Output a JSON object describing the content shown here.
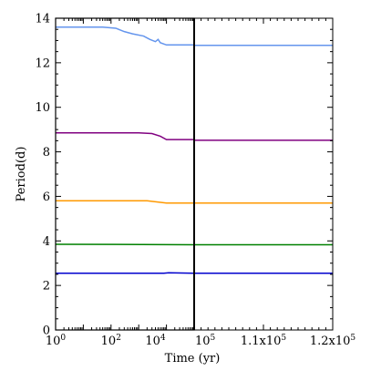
{
  "chart_data": {
    "type": "line",
    "ylabel": "Period(d)",
    "xlabel": "Time (yr)",
    "ylim": [
      0,
      14
    ],
    "yticks": [
      0,
      2,
      4,
      6,
      8,
      10,
      12,
      14
    ],
    "ytick_labels": [
      "0",
      "2",
      "4",
      "6",
      "8",
      "10",
      "12",
      "14"
    ],
    "panels": [
      {
        "name": "left",
        "xscale": "log",
        "xlim": [
          1,
          100000
        ],
        "xticks": [
          1,
          100,
          10000
        ],
        "xtick_labels": [
          "10",
          "10",
          "10"
        ],
        "xtick_exponents": [
          "0",
          "2",
          "4"
        ]
      },
      {
        "name": "right",
        "xscale": "linear",
        "xlim": [
          100000,
          120000
        ],
        "xticks": [
          100000,
          110000,
          120000
        ],
        "xtick_labels": [
          "10",
          "1.1x10",
          "1.2x10"
        ],
        "xtick_exponents": [
          "5",
          "5",
          "5"
        ]
      }
    ],
    "series": [
      {
        "color": "#6495ed",
        "left": [
          [
            1,
            13.6
          ],
          [
            50,
            13.6
          ],
          [
            150,
            13.55
          ],
          [
            300,
            13.4
          ],
          [
            600,
            13.3
          ],
          [
            1500,
            13.2
          ],
          [
            2500,
            13.05
          ],
          [
            4000,
            12.95
          ],
          [
            5000,
            13.05
          ],
          [
            6000,
            12.9
          ],
          [
            10000,
            12.8
          ],
          [
            100000,
            12.8
          ]
        ],
        "right": [
          [
            100000,
            12.78
          ],
          [
            120000,
            12.78
          ]
        ]
      },
      {
        "color": "#800080",
        "left": [
          [
            1,
            8.85
          ],
          [
            1000,
            8.85
          ],
          [
            3000,
            8.82
          ],
          [
            6000,
            8.7
          ],
          [
            10000,
            8.55
          ],
          [
            100000,
            8.55
          ]
        ],
        "right": [
          [
            100000,
            8.52
          ],
          [
            120000,
            8.52
          ]
        ]
      },
      {
        "color": "#ff9900",
        "left": [
          [
            1,
            5.8
          ],
          [
            2000,
            5.8
          ],
          [
            10000,
            5.7
          ],
          [
            100000,
            5.7
          ]
        ],
        "right": [
          [
            100000,
            5.7
          ],
          [
            120000,
            5.7
          ]
        ]
      },
      {
        "color": "#008000",
        "left": [
          [
            1,
            3.85
          ],
          [
            100000,
            3.83
          ]
        ],
        "right": [
          [
            100000,
            3.83
          ],
          [
            120000,
            3.83
          ]
        ]
      },
      {
        "color": "#0000cd",
        "left": [
          [
            1,
            2.55
          ],
          [
            8000,
            2.55
          ],
          [
            12000,
            2.57
          ],
          [
            100000,
            2.55
          ]
        ],
        "right": [
          [
            100000,
            2.55
          ],
          [
            120000,
            2.55
          ]
        ]
      }
    ]
  }
}
